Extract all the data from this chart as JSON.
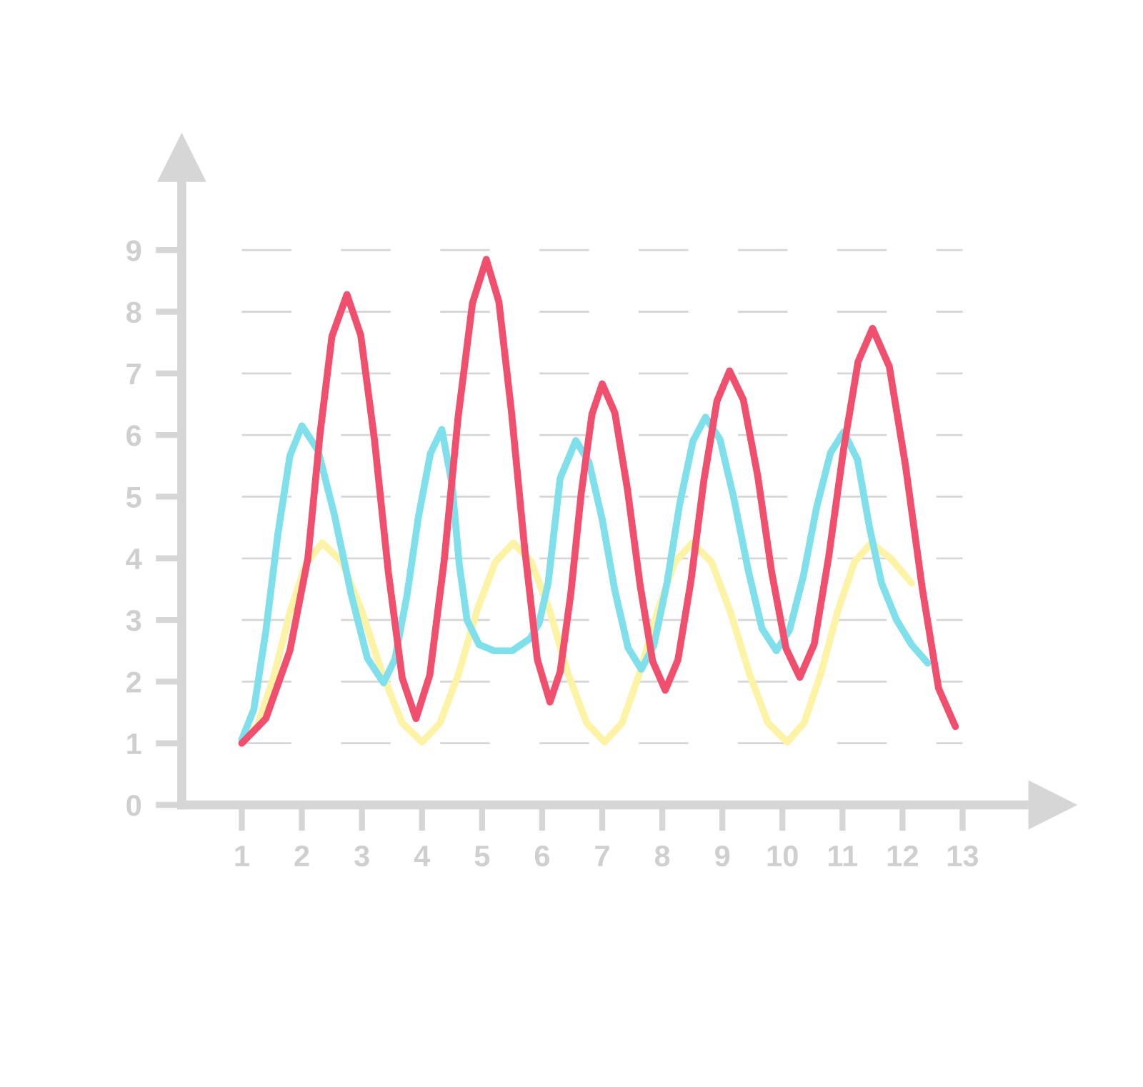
{
  "chart_data": {
    "type": "line",
    "xlim": [
      0,
      14.5
    ],
    "ylim": [
      0,
      10.5
    ],
    "xticks": [
      1,
      2,
      3,
      4,
      5,
      6,
      7,
      8,
      9,
      10,
      11,
      12,
      13
    ],
    "yticks": [
      0,
      1,
      2,
      3,
      4,
      5,
      6,
      7,
      8,
      9
    ],
    "grid": "y",
    "legend": false,
    "marker": "none",
    "line_style": "solid",
    "series": [
      {
        "color": "#fdf3a6",
        "x": [
          1,
          1.27,
          1.54,
          1.8,
          2.07,
          2.34,
          2.67,
          3.0,
          3.34,
          3.67,
          4.0,
          4.3,
          4.61,
          4.91,
          5.22,
          5.52,
          5.82,
          6.13,
          6.43,
          6.74,
          7.04,
          7.33,
          7.62,
          7.92,
          8.21,
          8.5,
          8.82,
          9.13,
          9.45,
          9.76,
          10.08,
          10.36,
          10.64,
          10.92,
          11.2,
          11.48,
          11.8,
          12.15
        ],
        "values": [
          1,
          1.31,
          2.11,
          3.12,
          3.92,
          4.25,
          3.94,
          3.14,
          2.13,
          1.33,
          1.02,
          1.33,
          2.13,
          3.14,
          3.94,
          4.25,
          3.94,
          3.14,
          2.13,
          1.33,
          1.02,
          1.33,
          2.13,
          3.14,
          3.94,
          4.25,
          3.94,
          3.14,
          2.13,
          1.33,
          1.02,
          1.33,
          2.13,
          3.14,
          3.94,
          4.25,
          4.0,
          3.6
        ]
      },
      {
        "color": "#7fe0ec",
        "x": [
          1,
          1.2,
          1.4,
          1.6,
          1.8,
          2.0,
          2.27,
          2.54,
          2.82,
          3.09,
          3.36,
          3.55,
          3.75,
          3.94,
          4.14,
          4.33,
          4.5,
          4.62,
          4.75,
          4.95,
          5.2,
          5.5,
          5.8,
          5.95,
          6.1,
          6.3,
          6.56,
          6.78,
          7.0,
          7.21,
          7.43,
          7.65,
          7.86,
          8.08,
          8.29,
          8.51,
          8.72,
          8.96,
          9.19,
          9.43,
          9.66,
          9.9,
          10.12,
          10.35,
          10.57,
          10.8,
          11.02,
          11.25,
          11.45,
          11.65,
          11.9,
          12.15,
          12.42
        ],
        "values": [
          1.06,
          1.55,
          2.82,
          4.39,
          5.66,
          6.15,
          5.75,
          4.71,
          3.42,
          2.38,
          1.98,
          2.37,
          3.4,
          4.67,
          5.7,
          6.09,
          5.2,
          3.9,
          3.0,
          2.6,
          2.5,
          2.5,
          2.7,
          2.95,
          3.6,
          5.3,
          5.91,
          5.56,
          4.63,
          3.48,
          2.55,
          2.2,
          2.59,
          3.61,
          4.88,
          5.9,
          6.29,
          5.93,
          4.98,
          3.81,
          2.86,
          2.5,
          2.84,
          3.72,
          4.83,
          5.71,
          6.05,
          5.6,
          4.5,
          3.6,
          3.0,
          2.6,
          2.3
        ]
      },
      {
        "color": "#f0506e",
        "x": [
          1,
          1.4,
          1.8,
          2.1,
          2.3,
          2.5,
          2.75,
          2.98,
          3.21,
          3.44,
          3.67,
          3.9,
          4.13,
          4.37,
          4.6,
          4.84,
          5.07,
          5.28,
          5.49,
          5.71,
          5.92,
          6.13,
          6.3,
          6.48,
          6.65,
          6.83,
          7.0,
          7.21,
          7.42,
          7.63,
          7.84,
          8.05,
          8.26,
          8.48,
          8.69,
          8.91,
          9.12,
          9.35,
          9.59,
          9.82,
          10.06,
          10.29,
          10.53,
          10.77,
          11.02,
          11.26,
          11.5,
          11.78,
          12.05,
          12.33,
          12.6,
          12.88
        ],
        "values": [
          1,
          1.4,
          2.5,
          4.0,
          6.0,
          7.6,
          8.28,
          7.62,
          5.91,
          3.77,
          2.06,
          1.4,
          2.11,
          3.97,
          6.28,
          8.14,
          8.85,
          8.16,
          6.37,
          4.15,
          2.36,
          1.67,
          2.16,
          3.45,
          5.05,
          6.34,
          6.83,
          6.36,
          5.12,
          3.57,
          2.33,
          1.86,
          2.35,
          3.65,
          5.25,
          6.55,
          7.04,
          6.57,
          5.33,
          3.78,
          2.54,
          2.07,
          2.61,
          4.02,
          5.78,
          7.19,
          7.73,
          7.11,
          5.5,
          3.5,
          1.89,
          1.27
        ]
      }
    ]
  }
}
